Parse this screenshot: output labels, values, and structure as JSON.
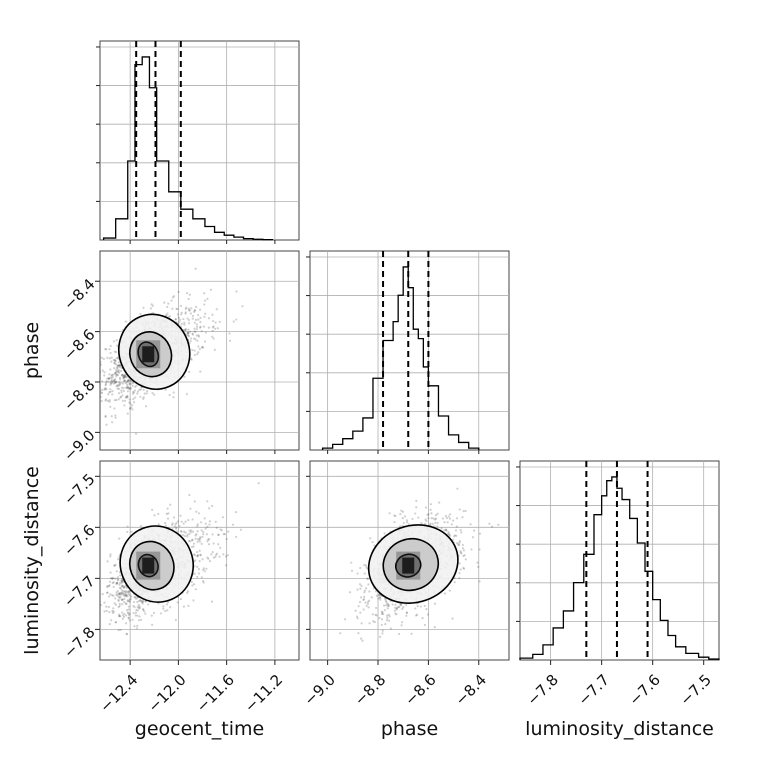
{
  "chart_data": {
    "type": "corner",
    "parameters": [
      "geocent_time",
      "phase",
      "luminosity_distance"
    ],
    "axes": {
      "geocent_time": {
        "label": "geocent_time",
        "range": [
          -12.65,
          -11.0
        ],
        "ticks": [
          -12.4,
          -12.0,
          -11.6,
          -11.2
        ],
        "tick_labels": [
          "−12.4",
          "−12.0",
          "−11.6",
          "−11.2"
        ]
      },
      "phase": {
        "label": "phase",
        "range": [
          -9.07,
          -8.28
        ],
        "ticks": [
          -9.0,
          -8.8,
          -8.6,
          -8.4
        ],
        "tick_labels": [
          "−9.0",
          "−8.8",
          "−8.6",
          "−8.4"
        ]
      },
      "luminosity_distance": {
        "label": "luminosity_distance",
        "range": [
          -7.86,
          -7.47
        ],
        "ticks": [
          -7.8,
          -7.7,
          -7.6,
          -7.5
        ],
        "tick_labels": [
          "−7.8",
          "−7.7",
          "−7.6",
          "−7.5"
        ]
      }
    },
    "histograms": [
      {
        "parameter": "geocent_time",
        "bin_edges": [
          -12.62,
          -12.52,
          -12.42,
          -12.36,
          -12.3,
          -12.24,
          -12.18,
          -12.08,
          -11.98,
          -11.88,
          -11.78,
          -11.7,
          -11.62,
          -11.54,
          -11.46,
          -11.38,
          -11.3,
          -11.22
        ],
        "counts": [
          0.01,
          0.11,
          0.41,
          0.91,
          0.95,
          0.79,
          0.41,
          0.25,
          0.16,
          0.11,
          0.07,
          0.04,
          0.025,
          0.015,
          0.007,
          0.004,
          0.002
        ],
        "quantiles": [
          -12.35,
          -12.19,
          -11.98
        ]
      },
      {
        "parameter": "phase",
        "bin_edges": [
          -9.02,
          -8.98,
          -8.94,
          -8.9,
          -8.86,
          -8.82,
          -8.78,
          -8.74,
          -8.72,
          -8.7,
          -8.68,
          -8.66,
          -8.64,
          -8.62,
          -8.6,
          -8.56,
          -8.52,
          -8.48,
          -8.44,
          -8.4
        ],
        "counts": [
          0.01,
          0.03,
          0.06,
          0.1,
          0.17,
          0.38,
          0.58,
          0.68,
          0.82,
          0.97,
          0.86,
          0.64,
          0.59,
          0.44,
          0.34,
          0.18,
          0.08,
          0.04,
          0.01
        ],
        "quantiles": [
          -8.78,
          -8.68,
          -8.6
        ]
      },
      {
        "parameter": "luminosity_distance",
        "bin_edges": [
          -7.86,
          -7.835,
          -7.815,
          -7.795,
          -7.775,
          -7.755,
          -7.735,
          -7.715,
          -7.7,
          -7.69,
          -7.68,
          -7.67,
          -7.66,
          -7.645,
          -7.63,
          -7.615,
          -7.6,
          -7.585,
          -7.57,
          -7.555,
          -7.535,
          -7.51,
          -7.49,
          -7.47
        ],
        "counts": [
          0.01,
          0.03,
          0.08,
          0.17,
          0.26,
          0.41,
          0.56,
          0.77,
          0.87,
          0.95,
          0.97,
          0.91,
          0.85,
          0.75,
          0.62,
          0.47,
          0.32,
          0.21,
          0.13,
          0.07,
          0.035,
          0.015,
          0.005
        ],
        "quantiles": [
          -7.73,
          -7.67,
          -7.61
        ]
      }
    ],
    "scatter_2d": [
      {
        "x": "geocent_time",
        "y": "phase",
        "mean": [
          -12.27,
          -8.69
        ],
        "std": [
          0.2,
          0.09
        ],
        "corr": 0.55,
        "contour_levels": [
          {
            "cx": -12.25,
            "cy": -8.69,
            "rx": 0.08,
            "ry": 0.05
          },
          {
            "cx": -12.23,
            "cy": -8.69,
            "rx": 0.17,
            "ry": 0.09
          },
          {
            "cx": -12.2,
            "cy": -8.68,
            "rx": 0.29,
            "ry": 0.15
          }
        ]
      },
      {
        "x": "geocent_time",
        "y": "luminosity_distance",
        "mean": [
          -12.24,
          -7.68
        ],
        "std": [
          0.2,
          0.045
        ],
        "corr": 0.5,
        "contour_levels": [
          {
            "cx": -12.25,
            "cy": -7.675,
            "rx": 0.08,
            "ry": 0.022
          },
          {
            "cx": -12.22,
            "cy": -7.675,
            "rx": 0.18,
            "ry": 0.048
          },
          {
            "cx": -12.18,
            "cy": -7.672,
            "rx": 0.3,
            "ry": 0.075
          }
        ]
      },
      {
        "x": "phase",
        "y": "luminosity_distance",
        "mean": [
          -8.69,
          -7.675
        ],
        "std": [
          0.09,
          0.045
        ],
        "corr": 0.45,
        "contour_levels": [
          {
            "cx": -8.68,
            "cy": -7.675,
            "rx": 0.05,
            "ry": 0.022
          },
          {
            "cx": -8.67,
            "cy": -7.673,
            "rx": 0.11,
            "ry": 0.05
          },
          {
            "cx": -8.66,
            "cy": -7.672,
            "rx": 0.18,
            "ry": 0.075
          }
        ]
      }
    ]
  }
}
